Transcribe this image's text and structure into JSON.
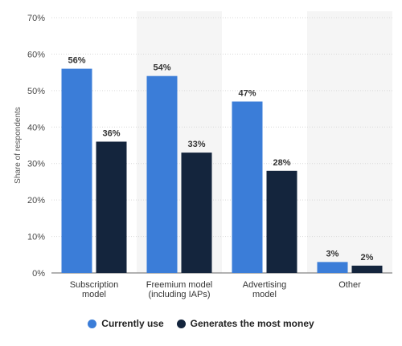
{
  "chart_data": {
    "type": "bar",
    "ylabel": "Share of respondents",
    "y_ticks": [
      "0%",
      "10%",
      "20%",
      "30%",
      "40%",
      "50%",
      "60%",
      "70%"
    ],
    "ylim": [
      0,
      70
    ],
    "grid": true,
    "categories": [
      [
        "Subscription",
        "model"
      ],
      [
        "Freemium model",
        "(including IAPs)"
      ],
      [
        "Advertising",
        "model"
      ],
      [
        "Other"
      ]
    ],
    "series": [
      {
        "name": "Currently use",
        "color": "#3b7dd8",
        "values": [
          56,
          54,
          47,
          3
        ],
        "labels": [
          "56%",
          "54%",
          "47%",
          "3%"
        ]
      },
      {
        "name": "Generates the most money",
        "color": "#14253d",
        "values": [
          36,
          33,
          28,
          2
        ],
        "labels": [
          "36%",
          "33%",
          "28%",
          "2%"
        ]
      }
    ],
    "legend_position": "bottom"
  }
}
